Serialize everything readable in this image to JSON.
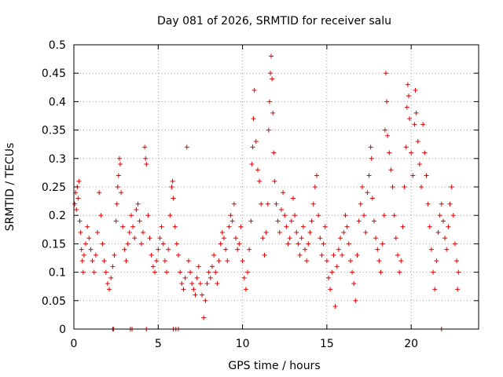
{
  "chart_data": {
    "type": "scatter",
    "title": "Day 081 of 2026, SRMTID for receiver salu",
    "xlabel": "GPS time / hours",
    "ylabel": "SRMTID / TECUs",
    "xlim": [
      0,
      24
    ],
    "ylim": [
      0,
      0.5
    ],
    "x_ticks": [
      0,
      5,
      10,
      15,
      20
    ],
    "x_tick_labels": [
      "0",
      "5",
      "10",
      "15",
      "20"
    ],
    "y_ticks": [
      0,
      0.05,
      0.1,
      0.15,
      0.2,
      0.25,
      0.3,
      0.35,
      0.4,
      0.45,
      0.5
    ],
    "y_tick_labels": [
      "0",
      "0.05",
      "0.1",
      "0.15",
      "0.2",
      "0.25",
      "0.3",
      "0.35",
      "0.4",
      "0.45",
      "0.5"
    ],
    "grid": true,
    "marker": "plus",
    "color": "#e00000",
    "series": [
      {
        "name": "SRMTID",
        "points": [
          [
            0.05,
            0.22
          ],
          [
            0.1,
            0.24
          ],
          [
            0.15,
            0.21
          ],
          [
            0.2,
            0.25
          ],
          [
            0.25,
            0.23
          ],
          [
            0.3,
            0.26
          ],
          [
            0.35,
            0.19
          ],
          [
            0.4,
            0.17
          ],
          [
            0.45,
            0.14
          ],
          [
            0.5,
            0.12
          ],
          [
            0.55,
            0.1
          ],
          [
            0.6,
            0.13
          ],
          [
            0.7,
            0.15
          ],
          [
            0.8,
            0.18
          ],
          [
            0.9,
            0.16
          ],
          [
            1.0,
            0.14
          ],
          [
            1.1,
            0.12
          ],
          [
            1.2,
            0.1
          ],
          [
            1.3,
            0.13
          ],
          [
            1.4,
            0.17
          ],
          [
            1.5,
            0.24
          ],
          [
            1.6,
            0.2
          ],
          [
            1.7,
            0.15
          ],
          [
            1.8,
            0.12
          ],
          [
            1.9,
            0.1
          ],
          [
            2.0,
            0.08
          ],
          [
            2.1,
            0.07
          ],
          [
            2.2,
            0.09
          ],
          [
            2.3,
            0.11
          ],
          [
            2.4,
            0.13
          ],
          [
            2.5,
            0.19
          ],
          [
            2.55,
            0.22
          ],
          [
            2.6,
            0.25
          ],
          [
            2.65,
            0.27
          ],
          [
            2.7,
            0.3
          ],
          [
            2.75,
            0.29
          ],
          [
            2.8,
            0.24
          ],
          [
            2.9,
            0.18
          ],
          [
            3.0,
            0.14
          ],
          [
            3.1,
            0.12
          ],
          [
            3.2,
            0.15
          ],
          [
            3.3,
            0.17
          ],
          [
            3.4,
            0.2
          ],
          [
            3.5,
            0.18
          ],
          [
            3.6,
            0.16
          ],
          [
            3.7,
            0.21
          ],
          [
            3.8,
            0.22
          ],
          [
            3.9,
            0.19
          ],
          [
            4.0,
            0.15
          ],
          [
            4.1,
            0.17
          ],
          [
            4.2,
            0.32
          ],
          [
            4.25,
            0.3
          ],
          [
            4.3,
            0.29
          ],
          [
            4.4,
            0.2
          ],
          [
            4.5,
            0.16
          ],
          [
            4.6,
            0.13
          ],
          [
            4.7,
            0.11
          ],
          [
            4.8,
            0.1
          ],
          [
            4.9,
            0.12
          ],
          [
            5.0,
            0.14
          ],
          [
            5.1,
            0.16
          ],
          [
            5.2,
            0.18
          ],
          [
            5.3,
            0.15
          ],
          [
            5.4,
            0.12
          ],
          [
            5.5,
            0.1
          ],
          [
            5.6,
            0.14
          ],
          [
            5.7,
            0.2
          ],
          [
            5.8,
            0.25
          ],
          [
            5.85,
            0.26
          ],
          [
            5.9,
            0.23
          ],
          [
            6.0,
            0.18
          ],
          [
            6.1,
            0.15
          ],
          [
            6.2,
            0.13
          ],
          [
            6.3,
            0.1
          ],
          [
            6.4,
            0.08
          ],
          [
            6.5,
            0.07
          ],
          [
            6.6,
            0.09
          ],
          [
            6.7,
            0.32
          ],
          [
            6.8,
            0.12
          ],
          [
            6.9,
            0.1
          ],
          [
            7.0,
            0.08
          ],
          [
            7.1,
            0.07
          ],
          [
            7.2,
            0.06
          ],
          [
            7.3,
            0.09
          ],
          [
            7.4,
            0.11
          ],
          [
            7.5,
            0.08
          ],
          [
            7.6,
            0.06
          ],
          [
            7.7,
            0.02
          ],
          [
            7.8,
            0.05
          ],
          [
            7.9,
            0.08
          ],
          [
            8.0,
            0.1
          ],
          [
            8.1,
            0.09
          ],
          [
            8.2,
            0.11
          ],
          [
            8.3,
            0.13
          ],
          [
            8.4,
            0.1
          ],
          [
            8.5,
            0.08
          ],
          [
            8.6,
            0.12
          ],
          [
            8.7,
            0.15
          ],
          [
            8.8,
            0.17
          ],
          [
            8.9,
            0.16
          ],
          [
            9.0,
            0.14
          ],
          [
            9.1,
            0.12
          ],
          [
            9.2,
            0.18
          ],
          [
            9.3,
            0.2
          ],
          [
            9.4,
            0.19
          ],
          [
            9.5,
            0.22
          ],
          [
            9.6,
            0.16
          ],
          [
            9.7,
            0.14
          ],
          [
            9.8,
            0.15
          ],
          [
            9.9,
            0.18
          ],
          [
            10.0,
            0.12
          ],
          [
            10.1,
            0.09
          ],
          [
            10.2,
            0.07
          ],
          [
            10.3,
            0.1
          ],
          [
            10.4,
            0.14
          ],
          [
            10.5,
            0.19
          ],
          [
            10.55,
            0.29
          ],
          [
            10.6,
            0.32
          ],
          [
            10.65,
            0.37
          ],
          [
            10.7,
            0.42
          ],
          [
            10.8,
            0.33
          ],
          [
            10.9,
            0.28
          ],
          [
            11.0,
            0.26
          ],
          [
            11.1,
            0.22
          ],
          [
            11.2,
            0.16
          ],
          [
            11.3,
            0.13
          ],
          [
            11.4,
            0.17
          ],
          [
            11.5,
            0.22
          ],
          [
            11.55,
            0.35
          ],
          [
            11.6,
            0.4
          ],
          [
            11.65,
            0.45
          ],
          [
            11.7,
            0.48
          ],
          [
            11.75,
            0.44
          ],
          [
            11.8,
            0.38
          ],
          [
            11.85,
            0.31
          ],
          [
            11.9,
            0.26
          ],
          [
            12.0,
            0.22
          ],
          [
            12.1,
            0.19
          ],
          [
            12.2,
            0.17
          ],
          [
            12.3,
            0.21
          ],
          [
            12.4,
            0.24
          ],
          [
            12.5,
            0.2
          ],
          [
            12.6,
            0.18
          ],
          [
            12.7,
            0.15
          ],
          [
            12.8,
            0.16
          ],
          [
            12.9,
            0.19
          ],
          [
            13.0,
            0.23
          ],
          [
            13.1,
            0.2
          ],
          [
            13.2,
            0.17
          ],
          [
            13.3,
            0.15
          ],
          [
            13.4,
            0.13
          ],
          [
            13.5,
            0.16
          ],
          [
            13.6,
            0.18
          ],
          [
            13.7,
            0.14
          ],
          [
            13.8,
            0.12
          ],
          [
            13.9,
            0.15
          ],
          [
            14.0,
            0.17
          ],
          [
            14.1,
            0.19
          ],
          [
            14.2,
            0.22
          ],
          [
            14.3,
            0.25
          ],
          [
            14.4,
            0.27
          ],
          [
            14.5,
            0.2
          ],
          [
            14.6,
            0.16
          ],
          [
            14.7,
            0.13
          ],
          [
            14.8,
            0.15
          ],
          [
            14.9,
            0.18
          ],
          [
            15.0,
            0.12
          ],
          [
            15.1,
            0.09
          ],
          [
            15.2,
            0.07
          ],
          [
            15.3,
            0.1
          ],
          [
            15.4,
            0.13
          ],
          [
            15.5,
            0.04
          ],
          [
            15.6,
            0.11
          ],
          [
            15.7,
            0.14
          ],
          [
            15.8,
            0.16
          ],
          [
            15.9,
            0.13
          ],
          [
            16.0,
            0.17
          ],
          [
            16.1,
            0.2
          ],
          [
            16.2,
            0.18
          ],
          [
            16.3,
            0.15
          ],
          [
            16.4,
            0.12
          ],
          [
            16.5,
            0.1
          ],
          [
            16.6,
            0.08
          ],
          [
            16.7,
            0.05
          ],
          [
            16.8,
            0.13
          ],
          [
            16.9,
            0.19
          ],
          [
            17.0,
            0.22
          ],
          [
            17.1,
            0.25
          ],
          [
            17.2,
            0.2
          ],
          [
            17.3,
            0.17
          ],
          [
            17.4,
            0.24
          ],
          [
            17.5,
            0.27
          ],
          [
            17.6,
            0.32
          ],
          [
            17.65,
            0.3
          ],
          [
            17.7,
            0.23
          ],
          [
            17.8,
            0.19
          ],
          [
            17.9,
            0.16
          ],
          [
            18.0,
            0.14
          ],
          [
            18.1,
            0.12
          ],
          [
            18.2,
            0.1
          ],
          [
            18.3,
            0.15
          ],
          [
            18.4,
            0.2
          ],
          [
            18.45,
            0.35
          ],
          [
            18.5,
            0.45
          ],
          [
            18.55,
            0.4
          ],
          [
            18.6,
            0.34
          ],
          [
            18.7,
            0.31
          ],
          [
            18.8,
            0.28
          ],
          [
            18.9,
            0.25
          ],
          [
            19.0,
            0.2
          ],
          [
            19.1,
            0.16
          ],
          [
            19.2,
            0.13
          ],
          [
            19.3,
            0.1
          ],
          [
            19.4,
            0.12
          ],
          [
            19.5,
            0.18
          ],
          [
            19.6,
            0.25
          ],
          [
            19.7,
            0.32
          ],
          [
            19.75,
            0.39
          ],
          [
            19.8,
            0.43
          ],
          [
            19.85,
            0.41
          ],
          [
            19.9,
            0.37
          ],
          [
            20.0,
            0.31
          ],
          [
            20.1,
            0.27
          ],
          [
            20.2,
            0.36
          ],
          [
            20.25,
            0.42
          ],
          [
            20.3,
            0.38
          ],
          [
            20.4,
            0.33
          ],
          [
            20.5,
            0.29
          ],
          [
            20.6,
            0.25
          ],
          [
            20.7,
            0.36
          ],
          [
            20.8,
            0.31
          ],
          [
            20.9,
            0.27
          ],
          [
            21.0,
            0.22
          ],
          [
            21.1,
            0.18
          ],
          [
            21.2,
            0.14
          ],
          [
            21.3,
            0.1
          ],
          [
            21.4,
            0.07
          ],
          [
            21.5,
            0.12
          ],
          [
            21.6,
            0.17
          ],
          [
            21.7,
            0.2
          ],
          [
            21.8,
            0.22
          ],
          [
            21.9,
            0.19
          ],
          [
            22.0,
            0.16
          ],
          [
            22.1,
            0.14
          ],
          [
            22.2,
            0.18
          ],
          [
            22.3,
            0.22
          ],
          [
            22.4,
            0.25
          ],
          [
            22.5,
            0.2
          ],
          [
            22.6,
            0.15
          ],
          [
            22.7,
            0.12
          ],
          [
            22.75,
            0.07
          ],
          [
            22.8,
            0.1
          ],
          [
            2.3,
            0.0
          ],
          [
            2.35,
            0.0
          ],
          [
            3.35,
            0.0
          ],
          [
            3.45,
            0.0
          ],
          [
            4.3,
            0.0
          ],
          [
            5.9,
            0.0
          ],
          [
            6.05,
            0.0
          ],
          [
            6.2,
            0.0
          ],
          [
            21.8,
            0.0
          ]
        ]
      }
    ]
  }
}
